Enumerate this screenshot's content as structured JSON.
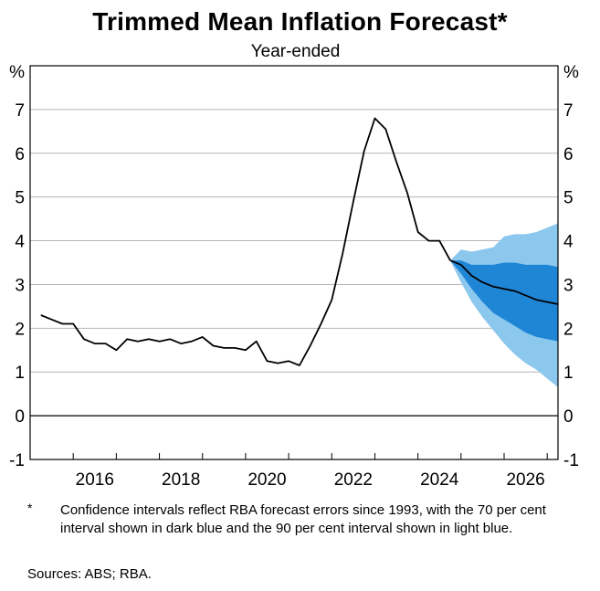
{
  "header": {
    "title": "Trimmed Mean Inflation Forecast*",
    "subtitle": "Year-ended"
  },
  "footer": {
    "note_marker": "*",
    "note": "Confidence intervals reflect RBA forecast errors since 1993, with the 70 per cent interval shown in dark blue and the 90 per cent interval shown in light blue.",
    "sources": "Sources: ABS; RBA."
  },
  "colors": {
    "line": "#000000",
    "band70": "#1f86d6",
    "band90": "#8cc8ee",
    "grid": "#b5b5b5"
  },
  "chart_data": {
    "type": "line",
    "title": "Trimmed Mean Inflation Forecast*",
    "subtitle": "Year-ended",
    "ylabel_left": "%",
    "ylabel_right": "%",
    "ylim": [
      -1,
      8
    ],
    "yticks": [
      -1,
      0,
      1,
      2,
      3,
      4,
      5,
      6,
      7
    ],
    "xlim": [
      2014.5,
      2026.75
    ],
    "xticks": [
      2016,
      2018,
      2020,
      2022,
      2024,
      2026
    ],
    "grid": "horizontal",
    "series": [
      {
        "points": [
          [
            2014.75,
            2.3
          ],
          [
            2015.0,
            2.2
          ],
          [
            2015.25,
            2.1
          ],
          [
            2015.5,
            2.1
          ],
          [
            2015.75,
            1.75
          ],
          [
            2016.0,
            1.65
          ],
          [
            2016.25,
            1.65
          ],
          [
            2016.5,
            1.5
          ],
          [
            2016.75,
            1.75
          ],
          [
            2017.0,
            1.7
          ],
          [
            2017.25,
            1.75
          ],
          [
            2017.5,
            1.7
          ],
          [
            2017.75,
            1.75
          ],
          [
            2018.0,
            1.65
          ],
          [
            2018.25,
            1.7
          ],
          [
            2018.5,
            1.8
          ],
          [
            2018.75,
            1.6
          ],
          [
            2019.0,
            1.55
          ],
          [
            2019.25,
            1.55
          ],
          [
            2019.5,
            1.5
          ],
          [
            2019.75,
            1.7
          ],
          [
            2020.0,
            1.25
          ],
          [
            2020.25,
            1.2
          ],
          [
            2020.5,
            1.25
          ],
          [
            2020.75,
            1.15
          ],
          [
            2021.0,
            1.6
          ],
          [
            2021.25,
            2.1
          ],
          [
            2021.5,
            2.65
          ],
          [
            2021.75,
            3.7
          ],
          [
            2022.0,
            4.9
          ],
          [
            2022.25,
            6.05
          ],
          [
            2022.5,
            6.8
          ],
          [
            2022.75,
            6.55
          ],
          [
            2023.0,
            5.8
          ],
          [
            2023.25,
            5.1
          ],
          [
            2023.5,
            4.2
          ],
          [
            2023.75,
            4.0
          ],
          [
            2024.0,
            4.0
          ],
          [
            2024.25,
            3.55
          ]
        ]
      },
      {
        "points": [
          [
            2024.25,
            3.55
          ],
          [
            2024.5,
            3.45
          ],
          [
            2024.75,
            3.2
          ],
          [
            2025.0,
            3.05
          ],
          [
            2025.25,
            2.95
          ],
          [
            2025.5,
            2.9
          ],
          [
            2025.75,
            2.85
          ],
          [
            2026.0,
            2.75
          ],
          [
            2026.25,
            2.65
          ],
          [
            2026.5,
            2.6
          ],
          [
            2026.75,
            2.55
          ]
        ]
      }
    ],
    "band_90": {
      "x": [
        2024.25,
        2024.5,
        2024.75,
        2025.0,
        2025.25,
        2025.5,
        2025.75,
        2026.0,
        2026.25,
        2026.5,
        2026.75
      ],
      "upper": [
        3.55,
        3.8,
        3.75,
        3.8,
        3.85,
        4.1,
        4.15,
        4.15,
        4.2,
        4.3,
        4.4
      ],
      "lower": [
        3.55,
        3.05,
        2.6,
        2.25,
        1.95,
        1.65,
        1.4,
        1.2,
        1.05,
        0.85,
        0.65
      ]
    },
    "band_70": {
      "x": [
        2024.25,
        2024.5,
        2024.75,
        2025.0,
        2025.25,
        2025.5,
        2025.75,
        2026.0,
        2026.25,
        2026.5,
        2026.75
      ],
      "upper": [
        3.55,
        3.55,
        3.45,
        3.45,
        3.45,
        3.5,
        3.5,
        3.45,
        3.45,
        3.45,
        3.4
      ],
      "lower": [
        3.55,
        3.25,
        2.9,
        2.6,
        2.35,
        2.2,
        2.05,
        1.9,
        1.8,
        1.75,
        1.7
      ]
    }
  }
}
